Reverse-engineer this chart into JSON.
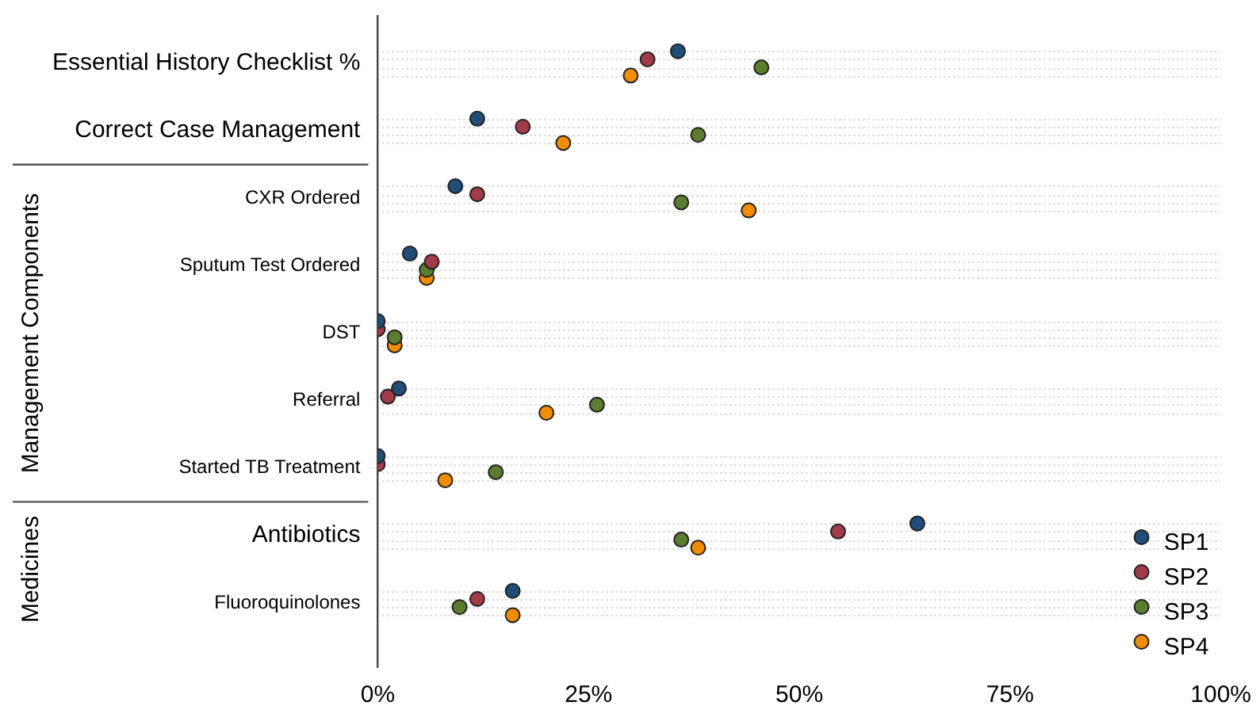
{
  "chart_data": {
    "type": "scatter",
    "orientation": "horizontal",
    "categories": [
      "Essential History Checklist %",
      "Correct Case Management",
      "CXR Ordered",
      "Sputum Test Ordered",
      "DST",
      "Referral",
      "Started TB Treatment",
      "Antibiotics",
      "Fluoroquinolones"
    ],
    "series": [
      {
        "name": "SP1",
        "color": "#1f4e79",
        "values": [
          35.6,
          11.8,
          9.2,
          3.8,
          0,
          2.5,
          0,
          64,
          16
        ]
      },
      {
        "name": "SP2",
        "color": "#a33a47",
        "values": [
          32,
          17.2,
          11.8,
          6.4,
          0,
          1.2,
          0,
          54.6,
          11.8
        ]
      },
      {
        "name": "SP3",
        "color": "#5a7d2e",
        "values": [
          45.5,
          38,
          36,
          5.8,
          2,
          26,
          14,
          36,
          9.7
        ]
      },
      {
        "name": "SP4",
        "color": "#f28c00",
        "values": [
          30,
          22,
          44,
          5.8,
          2,
          20,
          8,
          38,
          16
        ]
      }
    ],
    "xlim": [
      0,
      100
    ],
    "xticks": [
      {
        "value": 0,
        "label": "0%"
      },
      {
        "value": 25,
        "label": "25%"
      },
      {
        "value": 50,
        "label": "50%"
      },
      {
        "value": 75,
        "label": "75%"
      },
      {
        "value": 100,
        "label": "100%"
      }
    ],
    "annotations": [
      "Management Components",
      "Medicines"
    ],
    "grid": "y",
    "legend": "bottom right",
    "marker": "circle"
  }
}
